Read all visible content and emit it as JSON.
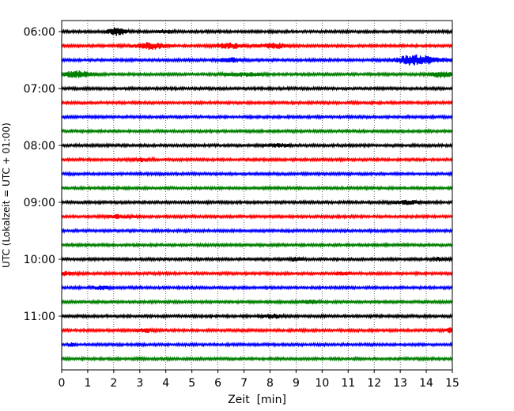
{
  "chart_data": {
    "type": "line",
    "title": "",
    "xlabel": "Zeit  [min]",
    "ylabel": "UTC (Lokalzeit = UTC + 01:00)",
    "xlim": [
      0,
      15
    ],
    "x_ticks": [
      "0",
      "1",
      "2",
      "3",
      "4",
      "5",
      "6",
      "7",
      "8",
      "9",
      "10",
      "11",
      "12",
      "13",
      "14",
      "15"
    ],
    "y_ticks": [
      "06:00",
      "07:00",
      "08:00",
      "09:00",
      "10:00",
      "11:00"
    ],
    "grid": "vertical-dotted",
    "trace_count": 24,
    "trace_interval_min": 15,
    "trace_colors": [
      "#000000",
      "#ff0000",
      "#0000ff",
      "#008000"
    ],
    "bursts": [
      {
        "trace": 0,
        "x": 2.1,
        "amplitude": 2.6,
        "width": 0.35
      },
      {
        "trace": 0,
        "x": 4.0,
        "amplitude": 1.2,
        "width": 0.25
      },
      {
        "trace": 1,
        "x": 3.4,
        "amplitude": 2.4,
        "width": 0.6
      },
      {
        "trace": 1,
        "x": 6.5,
        "amplitude": 1.8,
        "width": 0.6
      },
      {
        "trace": 1,
        "x": 8.2,
        "amplitude": 1.6,
        "width": 0.5
      },
      {
        "trace": 2,
        "x": 6.5,
        "amplitude": 1.4,
        "width": 0.4
      },
      {
        "trace": 2,
        "x": 13.3,
        "amplitude": 2.6,
        "width": 0.5
      },
      {
        "trace": 2,
        "x": 14.0,
        "amplitude": 2.6,
        "width": 0.6
      },
      {
        "trace": 3,
        "x": 0.6,
        "amplitude": 2.4,
        "width": 0.5
      },
      {
        "trace": 3,
        "x": 14.6,
        "amplitude": 2.0,
        "width": 0.4
      },
      {
        "trace": 3,
        "x": 7.0,
        "amplitude": 1.2,
        "width": 0.6
      },
      {
        "trace": 8,
        "x": 8.3,
        "amplitude": 1.0,
        "width": 0.4
      },
      {
        "trace": 9,
        "x": 3.0,
        "amplitude": 1.0,
        "width": 0.4
      },
      {
        "trace": 12,
        "x": 13.3,
        "amplitude": 1.2,
        "width": 0.5
      },
      {
        "trace": 13,
        "x": 2.2,
        "amplitude": 1.0,
        "width": 0.5
      },
      {
        "trace": 16,
        "x": 9.0,
        "amplitude": 1.0,
        "width": 0.3
      },
      {
        "trace": 16,
        "x": 14.5,
        "amplitude": 1.1,
        "width": 0.3
      },
      {
        "trace": 17,
        "x": 0.2,
        "amplitude": 1.2,
        "width": 0.3
      },
      {
        "trace": 17,
        "x": 10.8,
        "amplitude": 1.1,
        "width": 0.3
      },
      {
        "trace": 18,
        "x": 1.5,
        "amplitude": 1.1,
        "width": 0.3
      },
      {
        "trace": 19,
        "x": 9.5,
        "amplitude": 1.2,
        "width": 0.3
      },
      {
        "trace": 20,
        "x": 8.1,
        "amplitude": 1.2,
        "width": 0.35
      },
      {
        "trace": 21,
        "x": 3.2,
        "amplitude": 1.1,
        "width": 0.3
      },
      {
        "trace": 21,
        "x": 14.9,
        "amplitude": 1.4,
        "width": 0.2
      },
      {
        "trace": 22,
        "x": 0.4,
        "amplitude": 1.0,
        "width": 0.15
      }
    ]
  }
}
